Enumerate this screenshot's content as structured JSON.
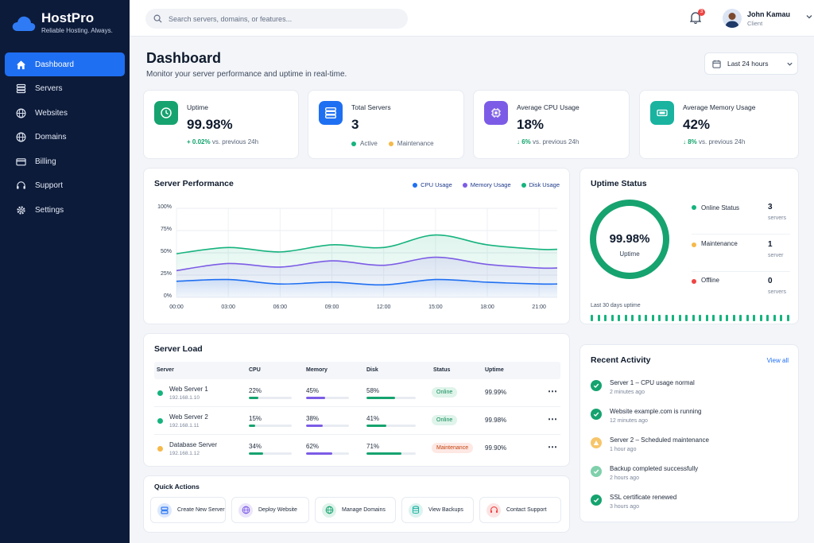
{
  "brand": {
    "name": "HostPro",
    "tagline": "Reliable Hosting. Always."
  },
  "nav": [
    {
      "label": "Dashboard",
      "icon": "home-icon",
      "active": true
    },
    {
      "label": "Servers",
      "icon": "server-icon"
    },
    {
      "label": "Websites",
      "icon": "globe-icon"
    },
    {
      "label": "Domains",
      "icon": "globe-icon"
    },
    {
      "label": "Billing",
      "icon": "credit-card-icon"
    },
    {
      "label": "Support",
      "icon": "headset-icon"
    },
    {
      "label": "Settings",
      "icon": "gear-icon"
    }
  ],
  "search": {
    "placeholder": "Search servers, domains, or features..."
  },
  "notifications": {
    "count": "3"
  },
  "user": {
    "name": "John Kamau",
    "role": "Client"
  },
  "page": {
    "title": "Dashboard",
    "subtitle": "Monitor your server performance and uptime in real-time."
  },
  "range": {
    "value": "Last 24 hours"
  },
  "stats": {
    "uptime": {
      "label": "Uptime",
      "value": "99.98%",
      "delta": "+ 0.02%",
      "delta_suffix": "vs. previous 24h"
    },
    "servers": {
      "label": "Total Servers",
      "value": "3",
      "active": "Active",
      "maintenance": "Maintenance"
    },
    "cpu": {
      "label": "Average CPU Usage",
      "value": "18%",
      "delta": "6%",
      "delta_suffix": "vs. previous 24h"
    },
    "memory": {
      "label": "Average Memory Usage",
      "value": "42%",
      "delta": "8%",
      "delta_suffix": "vs. previous 24h"
    }
  },
  "performance": {
    "title": "Server Performance",
    "chart_data": {
      "type": "area",
      "x": [
        "00:00",
        "03:00",
        "06:00",
        "09:00",
        "12:00",
        "15:00",
        "18:00",
        "21:00"
      ],
      "y_ticks": [
        "100%",
        "75%",
        "50%",
        "25%",
        "0%"
      ],
      "ylim": [
        0,
        100
      ],
      "series": [
        {
          "name": "CPU Usage",
          "color": "#1f6ff2",
          "values": [
            18,
            20,
            15,
            17,
            14,
            20,
            17,
            15
          ]
        },
        {
          "name": "Memory Usage",
          "color": "#7c5ce6",
          "values": [
            30,
            38,
            34,
            41,
            36,
            45,
            37,
            33
          ]
        },
        {
          "name": "Disk Usage",
          "color": "#16b37e",
          "values": [
            49,
            56,
            51,
            59,
            56,
            70,
            59,
            54
          ]
        }
      ]
    }
  },
  "uptime_status": {
    "title": "Uptime Status",
    "value": "99.98%",
    "label": "Uptime",
    "percent": 99.98,
    "rows": [
      {
        "label": "Online Status",
        "count": "3",
        "unit": "servers",
        "color": "#16b37e"
      },
      {
        "label": "Maintenance",
        "count": "1",
        "unit": "server",
        "color": "#f5b94a"
      },
      {
        "label": "Offline",
        "count": "0",
        "unit": "servers",
        "color": "#ef4444"
      }
    ],
    "history_label": "Last 30 days uptime"
  },
  "server_load": {
    "title": "Server Load",
    "headers": [
      "Server",
      "CPU",
      "Memory",
      "Disk",
      "Status",
      "Uptime"
    ],
    "rows": [
      {
        "name": "Web Server 1",
        "ip": "192.168.1.10",
        "cpu": "22%",
        "cpu_v": 22,
        "mem": "45%",
        "mem_v": 45,
        "disk": "58%",
        "disk_v": 58,
        "status": "Online",
        "uptime": "99.99%",
        "dot": "#16b37e"
      },
      {
        "name": "Web Server 2",
        "ip": "192.168.1.11",
        "cpu": "15%",
        "cpu_v": 15,
        "mem": "38%",
        "mem_v": 38,
        "disk": "41%",
        "disk_v": 41,
        "status": "Online",
        "uptime": "99.98%",
        "dot": "#16b37e"
      },
      {
        "name": "Database Server",
        "ip": "192.168.1.12",
        "cpu": "34%",
        "cpu_v": 34,
        "mem": "62%",
        "mem_v": 62,
        "disk": "71%",
        "disk_v": 71,
        "status": "Maintenance",
        "uptime": "99.90%",
        "dot": "#f5b94a"
      }
    ]
  },
  "quick_actions": {
    "title": "Quick Actions",
    "items": [
      "Create New Server",
      "Deploy Website",
      "Manage Domains",
      "View Backups",
      "Contact Support"
    ]
  },
  "activity": {
    "title": "Recent Activity",
    "view_all": "View all",
    "items": [
      {
        "title": "Server 1 – CPU usage normal",
        "time": "2 minutes ago",
        "type": "success"
      },
      {
        "title": "Website example.com is running",
        "time": "12 minutes ago",
        "type": "success"
      },
      {
        "title": "Server 2 – Scheduled maintenance",
        "time": "1 hour ago",
        "type": "warning"
      },
      {
        "title": "Backup completed successfully",
        "time": "2 hours ago",
        "type": "success-light"
      },
      {
        "title": "SSL certificate renewed",
        "time": "3 hours ago",
        "type": "success"
      }
    ]
  }
}
